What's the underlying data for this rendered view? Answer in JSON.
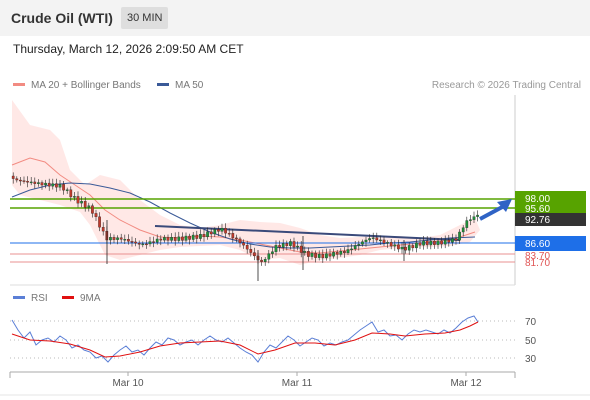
{
  "header": {
    "title": "Crude Oil (WTI)",
    "timeframe": "30 MIN",
    "timestamp": "Thursday, March 12, 2026 2:09:50 AM CET"
  },
  "legend": {
    "ma20_label": "MA 20 + Bollinger Bands",
    "ma20_color": "#f28b82",
    "ma50_label": "MA 50",
    "ma50_color": "#3a5a98",
    "credit": "Research © 2026 Trading Central"
  },
  "price_levels": [
    {
      "label": "98.00",
      "style": "green-box",
      "color": "#57a300"
    },
    {
      "label": "95.60",
      "style": "green-box",
      "color": "#57a300"
    },
    {
      "label": "92.76",
      "style": "dark-box",
      "color": "#333333"
    },
    {
      "label": "86.60",
      "style": "blue-box",
      "color": "#1e6fe8"
    },
    {
      "label": "83.70",
      "style": "red-text",
      "color": "#e05555"
    },
    {
      "label": "81.70",
      "style": "red-text",
      "color": "#e05555"
    }
  ],
  "rsi": {
    "rsi_label": "RSI",
    "rsi_color": "#5b7fd6",
    "ma_label": "9MA",
    "ma_color": "#e01010",
    "levels": [
      "70",
      "50",
      "30"
    ]
  },
  "x_axis": {
    "labels": [
      "Mar 10",
      "Mar 11",
      "Mar 12"
    ]
  }
}
